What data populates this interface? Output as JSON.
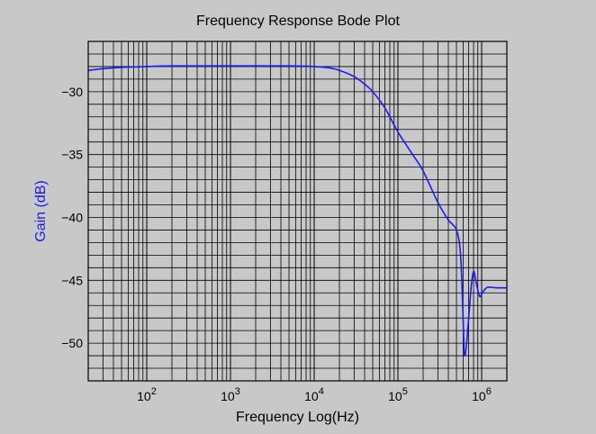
{
  "chart_data": {
    "type": "line",
    "title": "Frequency Response Bode Plot",
    "xlabel": "Frequency Log(Hz)",
    "ylabel": "Gain (dB)",
    "x_scale": "log",
    "xlim": [
      20,
      2000000
    ],
    "ylim": [
      -53,
      -26
    ],
    "grid": true,
    "x_ticks": [
      {
        "value": 100,
        "base": "10",
        "exp": "2"
      },
      {
        "value": 1000,
        "base": "10",
        "exp": "3"
      },
      {
        "value": 10000,
        "base": "10",
        "exp": "4"
      },
      {
        "value": 100000,
        "base": "10",
        "exp": "5"
      },
      {
        "value": 1000000,
        "base": "10",
        "exp": "6"
      }
    ],
    "y_ticks": [
      {
        "value": -30,
        "label": "−30"
      },
      {
        "value": -35,
        "label": "−35"
      },
      {
        "value": -40,
        "label": "−40"
      },
      {
        "value": -45,
        "label": "−45"
      },
      {
        "value": -50,
        "label": "−50"
      }
    ],
    "series": [
      {
        "color": "#1a1aff",
        "x": [
          20,
          40,
          100,
          200,
          1000,
          5000,
          10000,
          15000,
          20000,
          30000,
          40000,
          50000,
          70000,
          100000,
          150000,
          200000,
          300000,
          400000,
          500000,
          560000,
          600000,
          620000,
          650000,
          700000,
          750000,
          800000,
          850000,
          900000,
          950000,
          1000000,
          1100000,
          1200000,
          1500000,
          2000000
        ],
        "y": [
          -28.3,
          -28.1,
          -28.0,
          -27.95,
          -27.95,
          -27.95,
          -28.0,
          -28.1,
          -28.3,
          -28.8,
          -29.4,
          -30.0,
          -31.3,
          -33.2,
          -35.0,
          -36.3,
          -38.8,
          -40.2,
          -41.0,
          -43.0,
          -48.0,
          -50.8,
          -50.5,
          -48.0,
          -45.5,
          -44.3,
          -45.0,
          -45.8,
          -46.3,
          -46.1,
          -45.7,
          -45.55,
          -45.6,
          -45.6
        ]
      }
    ]
  }
}
